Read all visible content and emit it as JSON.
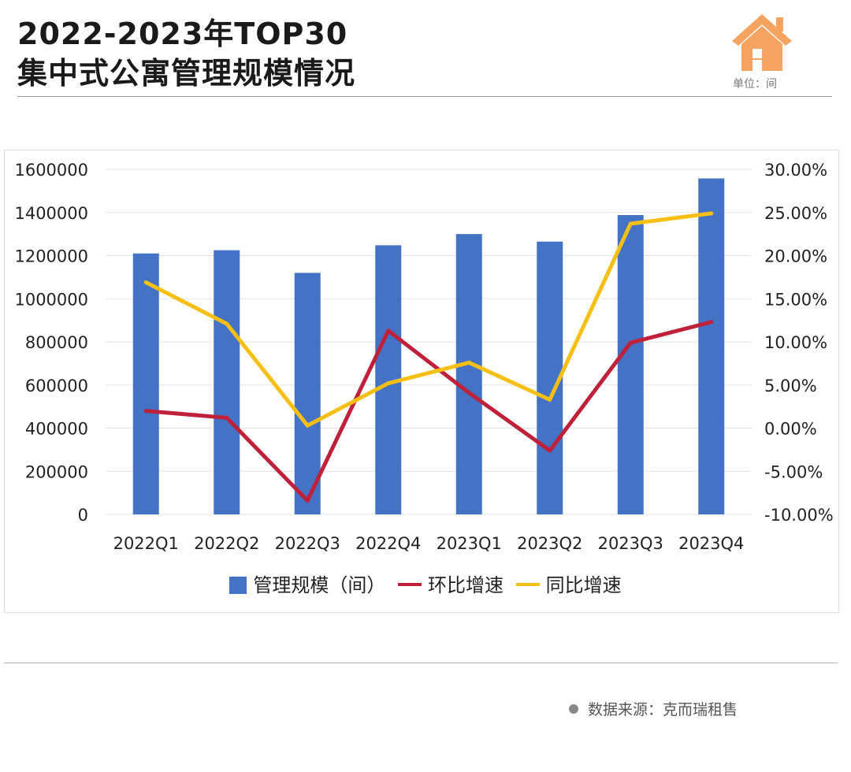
{
  "header": {
    "title_line1": "2022-2023年TOP30",
    "title_line2": "集中式公寓管理规模情况",
    "unit_label": "单位：间",
    "icon": "house-icon",
    "icon_color": "#f4a361"
  },
  "footer": {
    "source": "数据来源：克而瑞租售"
  },
  "chart_data": {
    "type": "bar",
    "categories": [
      "2022Q1",
      "2022Q2",
      "2022Q3",
      "2022Q4",
      "2023Q1",
      "2023Q2",
      "2023Q3",
      "2023Q4"
    ],
    "series": [
      {
        "name": "管理规模（间）",
        "type": "bar",
        "axis": "left",
        "color": "#4472c4",
        "values": [
          1210000,
          1225000,
          1120000,
          1248000,
          1300000,
          1265000,
          1388000,
          1558000
        ]
      },
      {
        "name": "环比增速",
        "type": "line",
        "axis": "right",
        "color": "#c0213a",
        "values": [
          2.0,
          1.2,
          -8.4,
          11.3,
          4.1,
          -2.6,
          9.9,
          12.3
        ]
      },
      {
        "name": "同比增速",
        "type": "line",
        "axis": "right",
        "color": "#f5bf14",
        "values": [
          16.9,
          12.1,
          0.3,
          5.2,
          7.6,
          3.3,
          23.7,
          24.9
        ]
      }
    ],
    "y_left": {
      "min": 0,
      "max": 1600000,
      "ticks": [
        "0",
        "200000",
        "400000",
        "600000",
        "800000",
        "1000000",
        "1200000",
        "1400000",
        "1600000"
      ]
    },
    "y_right": {
      "min": -10,
      "max": 30,
      "ticks": [
        "-10.00%",
        "-5.00%",
        "0.00%",
        "5.00%",
        "10.00%",
        "15.00%",
        "20.00%",
        "25.00%",
        "30.00%"
      ]
    },
    "grid": true,
    "legend_position": "bottom"
  }
}
